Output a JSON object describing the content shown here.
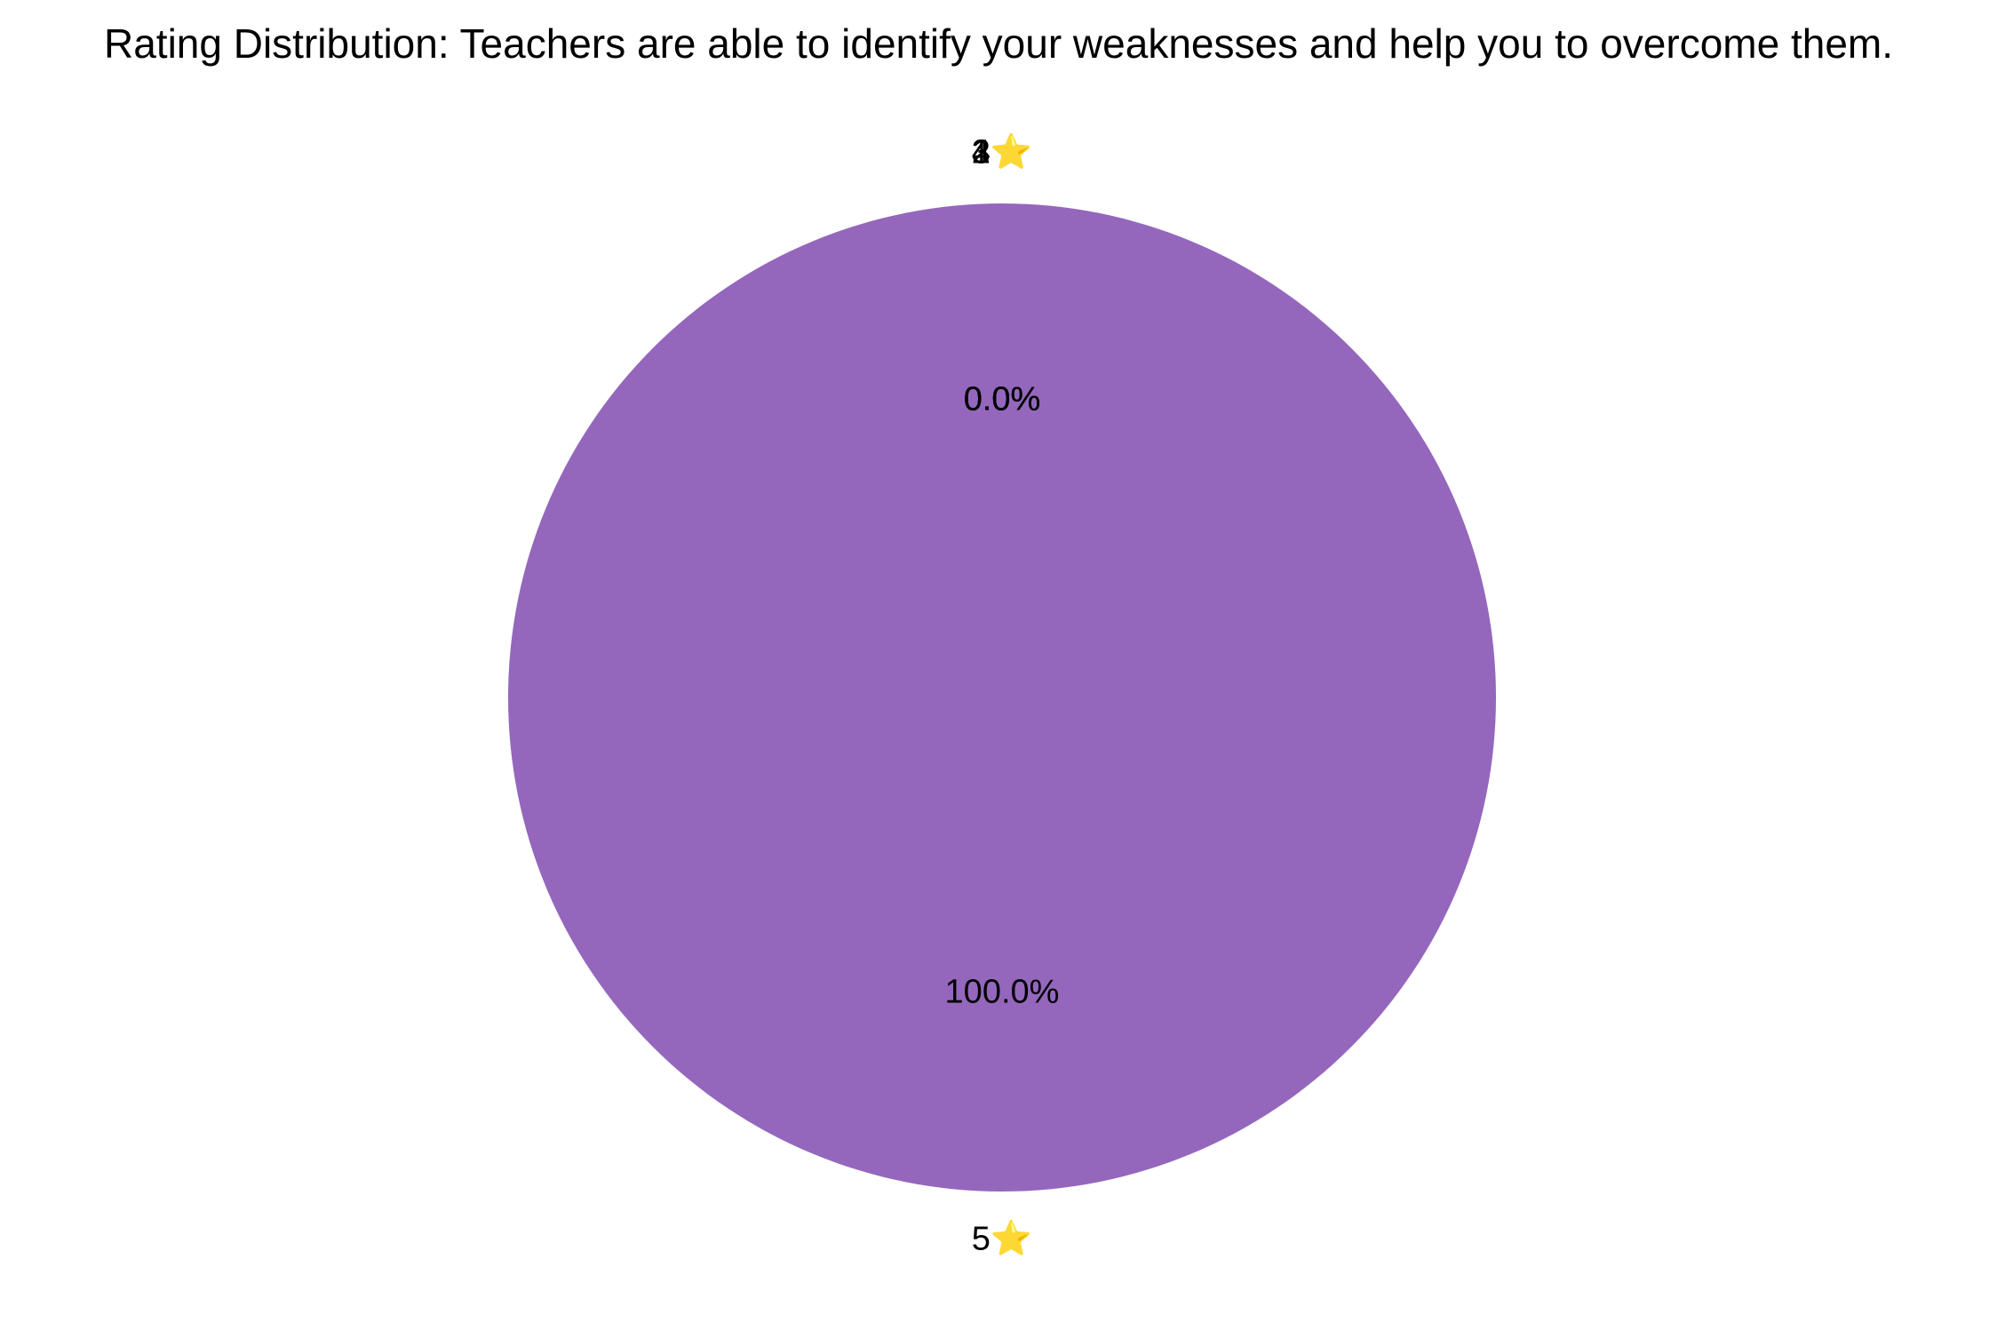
{
  "chart_data": {
    "type": "pie",
    "title": "Rating Distribution: Teachers are able to identify your weaknesses and help you to overcome them.",
    "categories": [
      "1⭐",
      "2⭐",
      "3⭐",
      "4⭐",
      "5⭐"
    ],
    "values": [
      0,
      0,
      0,
      0,
      100
    ],
    "percent_labels": [
      "0.0%",
      "0.0%",
      "0.0%",
      "0.0%",
      "100.0%"
    ],
    "colors": [
      "#1f77b4",
      "#ff7f0e",
      "#2ca02c",
      "#d62728",
      "#9467bd"
    ],
    "start_angle": "top",
    "direction": "counterclockwise",
    "legend": "none"
  }
}
